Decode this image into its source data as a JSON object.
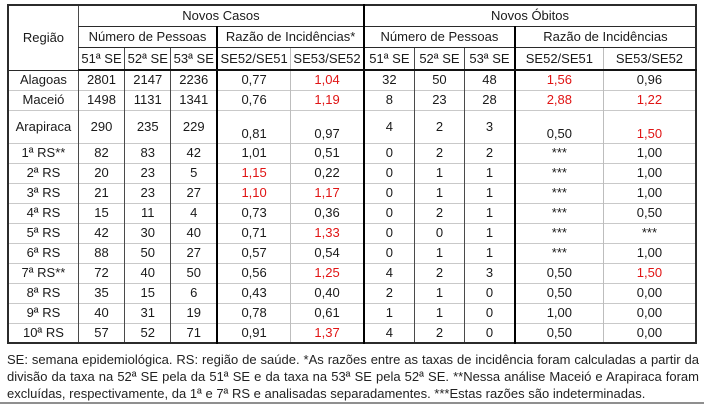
{
  "colors": {
    "red_value": "#e01414",
    "grid_light": "#c9c9c9",
    "grid_dark": "#4a4a4a",
    "border_black": "#000000",
    "bottom_rule_gray": "#8f8f8f"
  },
  "table": {
    "region_header": "Região",
    "groups": [
      {
        "title": "Novos Casos",
        "people": "Número de Pessoas",
        "ratio": "Razão de Incidências*"
      },
      {
        "title": "Novos Óbitos",
        "people": "Número de Pessoas",
        "ratio": "Razão de Incidências"
      }
    ],
    "week_headers": [
      "51ª SE",
      "52ª SE",
      "53ª SE"
    ],
    "ratio_headers": [
      "SE52/SE51",
      "SE53/SE52"
    ],
    "rows": [
      {
        "region": "Alagoas",
        "cases": [
          "2801",
          "2147",
          "2236"
        ],
        "case_ratios": [
          {
            "v": "0,77",
            "red": false
          },
          {
            "v": "1,04",
            "red": true
          }
        ],
        "deaths": [
          "32",
          "50",
          "48"
        ],
        "death_ratios": [
          {
            "v": "1,56",
            "red": true
          },
          {
            "v": "0,96",
            "red": false
          }
        ],
        "tall": false
      },
      {
        "region": "Maceió",
        "cases": [
          "1498",
          "1131",
          "1341"
        ],
        "case_ratios": [
          {
            "v": "0,76",
            "red": false
          },
          {
            "v": "1,19",
            "red": true
          }
        ],
        "deaths": [
          "8",
          "23",
          "28"
        ],
        "death_ratios": [
          {
            "v": "2,88",
            "red": true
          },
          {
            "v": "1,22",
            "red": true
          }
        ],
        "tall": false
      },
      {
        "region": "Arapiraca",
        "cases": [
          "290",
          "235",
          "229"
        ],
        "case_ratios": [
          {
            "v": "0,81",
            "red": false
          },
          {
            "v": "0,97",
            "red": false
          }
        ],
        "deaths": [
          "4",
          "2",
          "3"
        ],
        "death_ratios": [
          {
            "v": "0,50",
            "red": false
          },
          {
            "v": "1,50",
            "red": true
          }
        ],
        "tall": true
      },
      {
        "region": "1ª RS**",
        "cases": [
          "82",
          "83",
          "42"
        ],
        "case_ratios": [
          {
            "v": "1,01",
            "red": false
          },
          {
            "v": "0,51",
            "red": false
          }
        ],
        "deaths": [
          "0",
          "2",
          "2"
        ],
        "death_ratios": [
          {
            "v": "***",
            "red": false
          },
          {
            "v": "1,00",
            "red": false
          }
        ],
        "tall": false
      },
      {
        "region": "2ª RS",
        "cases": [
          "20",
          "23",
          "5"
        ],
        "case_ratios": [
          {
            "v": "1,15",
            "red": true
          },
          {
            "v": "0,22",
            "red": false
          }
        ],
        "deaths": [
          "0",
          "1",
          "1"
        ],
        "death_ratios": [
          {
            "v": "***",
            "red": false
          },
          {
            "v": "1,00",
            "red": false
          }
        ],
        "tall": false
      },
      {
        "region": "3ª RS",
        "cases": [
          "21",
          "23",
          "27"
        ],
        "case_ratios": [
          {
            "v": "1,10",
            "red": true
          },
          {
            "v": "1,17",
            "red": true
          }
        ],
        "deaths": [
          "0",
          "1",
          "1"
        ],
        "death_ratios": [
          {
            "v": "***",
            "red": false
          },
          {
            "v": "1,00",
            "red": false
          }
        ],
        "tall": false
      },
      {
        "region": "4ª RS",
        "cases": [
          "15",
          "11",
          "4"
        ],
        "case_ratios": [
          {
            "v": "0,73",
            "red": false
          },
          {
            "v": "0,36",
            "red": false
          }
        ],
        "deaths": [
          "0",
          "2",
          "1"
        ],
        "death_ratios": [
          {
            "v": "***",
            "red": false
          },
          {
            "v": "0,50",
            "red": false
          }
        ],
        "tall": false
      },
      {
        "region": "5ª RS",
        "cases": [
          "42",
          "30",
          "40"
        ],
        "case_ratios": [
          {
            "v": "0,71",
            "red": false
          },
          {
            "v": "1,33",
            "red": true
          }
        ],
        "deaths": [
          "0",
          "0",
          "1"
        ],
        "death_ratios": [
          {
            "v": "***",
            "red": false
          },
          {
            "v": "***",
            "red": false
          }
        ],
        "tall": false
      },
      {
        "region": "6ª RS",
        "cases": [
          "88",
          "50",
          "27"
        ],
        "case_ratios": [
          {
            "v": "0,57",
            "red": false
          },
          {
            "v": "0,54",
            "red": false
          }
        ],
        "deaths": [
          "0",
          "1",
          "1"
        ],
        "death_ratios": [
          {
            "v": "***",
            "red": false
          },
          {
            "v": "1,00",
            "red": false
          }
        ],
        "tall": false
      },
      {
        "region": "7ª RS**",
        "cases": [
          "72",
          "40",
          "50"
        ],
        "case_ratios": [
          {
            "v": "0,56",
            "red": false
          },
          {
            "v": "1,25",
            "red": true
          }
        ],
        "deaths": [
          "4",
          "2",
          "3"
        ],
        "death_ratios": [
          {
            "v": "0,50",
            "red": false
          },
          {
            "v": "1,50",
            "red": true
          }
        ],
        "tall": false
      },
      {
        "region": "8ª RS",
        "cases": [
          "35",
          "15",
          "6"
        ],
        "case_ratios": [
          {
            "v": "0,43",
            "red": false
          },
          {
            "v": "0,40",
            "red": false
          }
        ],
        "deaths": [
          "2",
          "1",
          "0"
        ],
        "death_ratios": [
          {
            "v": "0,50",
            "red": false
          },
          {
            "v": "0,00",
            "red": false
          }
        ],
        "tall": false
      },
      {
        "region": "9ª RS",
        "cases": [
          "40",
          "31",
          "19"
        ],
        "case_ratios": [
          {
            "v": "0,78",
            "red": false
          },
          {
            "v": "0,61",
            "red": false
          }
        ],
        "deaths": [
          "1",
          "1",
          "0"
        ],
        "death_ratios": [
          {
            "v": "1,00",
            "red": false
          },
          {
            "v": "0,00",
            "red": false
          }
        ],
        "tall": false
      },
      {
        "region": "10ª RS",
        "cases": [
          "57",
          "52",
          "71"
        ],
        "case_ratios": [
          {
            "v": "0,91",
            "red": false
          },
          {
            "v": "1,37",
            "red": true
          }
        ],
        "deaths": [
          "4",
          "2",
          "0"
        ],
        "death_ratios": [
          {
            "v": "0,50",
            "red": false
          },
          {
            "v": "0,00",
            "red": false
          }
        ],
        "tall": false
      }
    ]
  },
  "footnote": "SE: semana epidemiológica. RS: região de saúde. *As razões entre as taxas de incidência foram calculadas a partir da divisão da taxa na 52ª SE pela da 51ª SE e da taxa na 53ª SE pela 52ª SE. **Nessa análise Maceió e Arapiraca foram excluídas, respectivamente, da 1ª e 7ª RS e analisadas separadamentes. ***Estas razões são indeterminadas."
}
